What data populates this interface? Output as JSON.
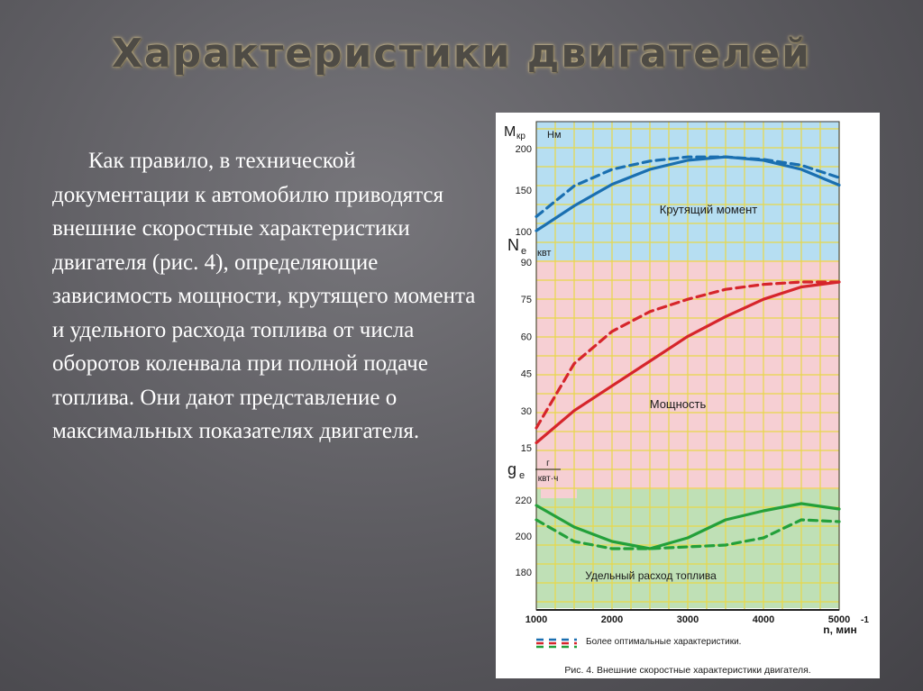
{
  "slide": {
    "title": "Характеристики двигателей",
    "body": "Как правило, в технической документации к автомобилю приводятся внешние скоростные характеристики двигателя (рис. 4), определяющие зависимость мощности, крутящего момента и удельного расхода топлива от числа оборотов коленвала при полной подаче топлива. Они дают представление о максимальных показателях двигателя."
  },
  "colors": {
    "torque_bg": "#b6def2",
    "power_bg": "#f6cfd3",
    "fuel_bg": "#bfe0b6",
    "grid": "#e8d84a",
    "torque_line": "#1a6fb0",
    "power_line": "#d6252b",
    "fuel_line": "#23a03a"
  },
  "chart_data": {
    "type": "line",
    "caption": "Рис. 4. Внешние скоростные характеристики двигателя.",
    "legend_text": "Более оптимальные характеристики.",
    "x": {
      "label": "n, мин",
      "exponent": "-1",
      "ticks": [
        "1000",
        "2000",
        "3000",
        "4000",
        "5000"
      ],
      "range": [
        1000,
        5000
      ]
    },
    "panels": [
      {
        "name": "Крутящий момент",
        "symbol": "M",
        "subscript": "кр",
        "unit": "Нм",
        "range": [
          100,
          200
        ],
        "ticks": [
          "200",
          "150",
          "100"
        ],
        "series": [
          {
            "style": "solid",
            "points": [
              [
                1000,
                101
              ],
              [
                1500,
                131
              ],
              [
                2000,
                157
              ],
              [
                2500,
                175
              ],
              [
                3000,
                186
              ],
              [
                3500,
                190
              ],
              [
                4000,
                186
              ],
              [
                4500,
                175
              ],
              [
                5000,
                156
              ]
            ]
          },
          {
            "style": "dashed",
            "points": [
              [
                1000,
                118
              ],
              [
                1500,
                155
              ],
              [
                2000,
                175
              ],
              [
                2500,
                185
              ],
              [
                3000,
                190
              ],
              [
                3500,
                190
              ],
              [
                4000,
                187
              ],
              [
                4500,
                180
              ],
              [
                5000,
                165
              ]
            ]
          }
        ]
      },
      {
        "name": "Мощность",
        "symbol": "N",
        "subscript": "е",
        "unit": "квт",
        "range": [
          15,
          90
        ],
        "ticks": [
          "90",
          "75",
          "60",
          "45",
          "30",
          "15"
        ],
        "series": [
          {
            "style": "solid",
            "points": [
              [
                1000,
                17
              ],
              [
                1500,
                30
              ],
              [
                2000,
                40
              ],
              [
                2500,
                50
              ],
              [
                3000,
                60
              ],
              [
                3500,
                68
              ],
              [
                4000,
                75
              ],
              [
                4500,
                80
              ],
              [
                5000,
                82
              ]
            ]
          },
          {
            "style": "dashed",
            "points": [
              [
                1000,
                23
              ],
              [
                1500,
                49
              ],
              [
                2000,
                62
              ],
              [
                2500,
                70
              ],
              [
                3000,
                75
              ],
              [
                3500,
                79
              ],
              [
                4000,
                81
              ],
              [
                4500,
                82
              ],
              [
                5000,
                82
              ]
            ]
          }
        ]
      },
      {
        "name": "Удельный расход топлива",
        "symbol": "g",
        "subscript": "e",
        "unit_numerator": "г",
        "unit_denominator": "квт·ч",
        "range": [
          170,
          225
        ],
        "ticks": [
          "220",
          "200",
          "180"
        ],
        "series": [
          {
            "style": "solid",
            "points": [
              [
                1000,
                217
              ],
              [
                1500,
                205
              ],
              [
                2000,
                197
              ],
              [
                2500,
                193
              ],
              [
                3000,
                199
              ],
              [
                3500,
                209
              ],
              [
                4000,
                214
              ],
              [
                4500,
                218
              ],
              [
                5000,
                215
              ]
            ]
          },
          {
            "style": "dashed",
            "points": [
              [
                1000,
                209
              ],
              [
                1500,
                197
              ],
              [
                2000,
                193
              ],
              [
                2500,
                193
              ],
              [
                3000,
                194
              ],
              [
                3500,
                195
              ],
              [
                4000,
                199
              ],
              [
                4500,
                209
              ],
              [
                5000,
                208
              ]
            ]
          }
        ]
      }
    ]
  }
}
